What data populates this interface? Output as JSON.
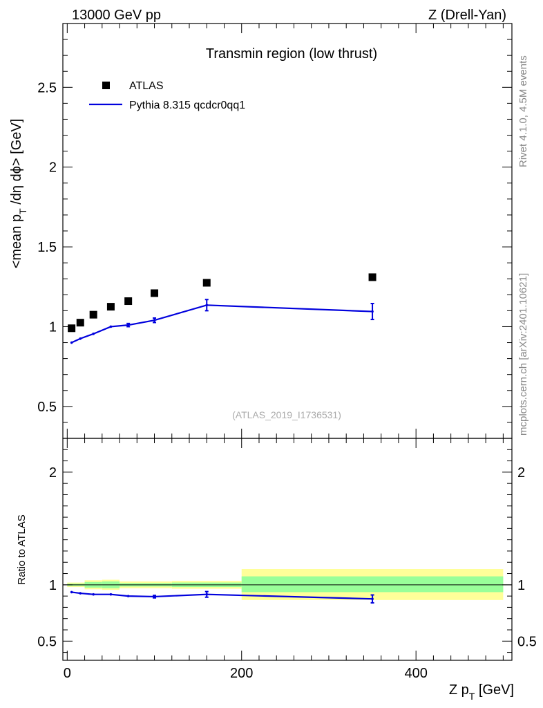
{
  "header": {
    "left": "13000 GeV pp",
    "right": "Z (Drell-Yan)"
  },
  "side_labels": {
    "rivet": "Rivet 4.1.0,  4.5M events",
    "mcplots": "mcplots.cern.ch [arXiv:2401.10621]"
  },
  "chart_data": [
    {
      "type": "scatter",
      "panel": "main",
      "title": "Transmin region (low thrust)",
      "watermark": "(ATLAS_2019_I1736531)",
      "ylabel_parts": [
        "<mean p",
        "T",
        " /d",
        "η",
        " d",
        "ϕ",
        "> [GeV]"
      ],
      "xlim": [
        -5,
        510
      ],
      "ylim": [
        0.3,
        2.9
      ],
      "y_ticks": [
        0.5,
        1,
        1.5,
        2,
        2.5
      ],
      "y_tick_labels": [
        "0.5",
        "1",
        "1.5",
        "2",
        "2.5"
      ],
      "legend": {
        "placement": "top-left",
        "data_label": "ATLAS",
        "mc_label": "Pythia 8.315 qcdcr0qq1"
      },
      "series": [
        {
          "name": "ATLAS",
          "style": "markers",
          "color": "#000000",
          "x": [
            5,
            15,
            30,
            50,
            70,
            100,
            160,
            350
          ],
          "y": [
            0.99,
            1.025,
            1.075,
            1.125,
            1.16,
            1.21,
            1.275,
            1.31
          ]
        },
        {
          "name": "Pythia 8.315 qcdcr0qq1",
          "style": "line",
          "color": "#0000dd",
          "x": [
            5,
            15,
            30,
            50,
            70,
            100,
            160,
            350
          ],
          "y": [
            0.9,
            0.925,
            0.955,
            1.0,
            1.01,
            1.04,
            1.135,
            1.095
          ],
          "yerr": [
            0.005,
            0.005,
            0.006,
            0.006,
            0.01,
            0.014,
            0.035,
            0.05
          ],
          "bins": [
            [
              0,
              10
            ],
            [
              10,
              20
            ],
            [
              20,
              40
            ],
            [
              40,
              60
            ],
            [
              60,
              80
            ],
            [
              80,
              120
            ],
            [
              120,
              200
            ],
            [
              200,
              500
            ]
          ]
        }
      ]
    },
    {
      "type": "line",
      "panel": "ratio",
      "ylabel": "Ratio to ATLAS",
      "xlabel_parts": [
        "Z p",
        "T",
        " [GeV]"
      ],
      "xlim": [
        -5,
        510
      ],
      "ylim": [
        0.33,
        2.3
      ],
      "x_ticks": [
        0,
        200,
        400
      ],
      "x_tick_labels": [
        "0",
        "200",
        "400"
      ],
      "y_ticks": [
        0.5,
        1,
        2
      ],
      "y_tick_labels": [
        "0.5",
        "1",
        "2"
      ],
      "reference_line": 1,
      "bands": [
        {
          "x0": 0,
          "x1": 20,
          "stat_lo": 0.99,
          "stat_hi": 1.01,
          "tot_lo": 0.98,
          "tot_hi": 1.02
        },
        {
          "x0": 20,
          "x1": 40,
          "stat_lo": 0.975,
          "stat_hi": 1.025,
          "tot_lo": 0.96,
          "tot_hi": 1.04
        },
        {
          "x0": 40,
          "x1": 60,
          "stat_lo": 0.97,
          "stat_hi": 1.03,
          "tot_lo": 0.955,
          "tot_hi": 1.045
        },
        {
          "x0": 60,
          "x1": 120,
          "stat_lo": 0.985,
          "stat_hi": 1.015,
          "tot_lo": 0.97,
          "tot_hi": 1.03
        },
        {
          "x0": 120,
          "x1": 200,
          "stat_lo": 0.98,
          "stat_hi": 1.02,
          "tot_lo": 0.965,
          "tot_hi": 1.035
        },
        {
          "x0": 200,
          "x1": 500,
          "stat_lo": 0.935,
          "stat_hi": 1.075,
          "tot_lo": 0.865,
          "tot_hi": 1.14
        }
      ],
      "series": [
        {
          "name": "Pythia 8.315 qcdcr0qq1 / ATLAS",
          "color": "#0000dd",
          "x": [
            5,
            15,
            30,
            50,
            70,
            100,
            160,
            350
          ],
          "y": [
            0.935,
            0.925,
            0.915,
            0.915,
            0.9,
            0.895,
            0.915,
            0.875
          ],
          "yerr": [
            0.005,
            0.005,
            0.006,
            0.006,
            0.008,
            0.011,
            0.025,
            0.035
          ],
          "bins": [
            [
              0,
              10
            ],
            [
              10,
              20
            ],
            [
              20,
              40
            ],
            [
              40,
              60
            ],
            [
              60,
              80
            ],
            [
              80,
              120
            ],
            [
              120,
              200
            ],
            [
              200,
              500
            ]
          ]
        }
      ]
    }
  ]
}
